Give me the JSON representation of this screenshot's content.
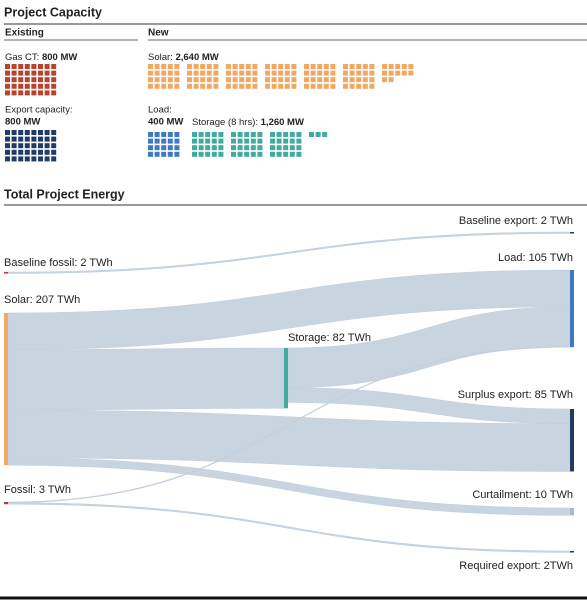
{
  "capacity": {
    "title": "Project Capacity",
    "existing_heading": "Existing",
    "new_heading": "New",
    "items": [
      {
        "label": "Gas CT:",
        "value_label": "800 MW",
        "value": 800,
        "color": "#b5452f"
      },
      {
        "label": "Export capacity:",
        "value_label": "800 MW",
        "value": 800,
        "color": "#1f3b66"
      },
      {
        "label": "Solar:",
        "value_label": "2,640 MW",
        "value": 2640,
        "color": "#f0a964"
      },
      {
        "label": "Load:",
        "value_label": "400 MW",
        "value": 400,
        "color": "#3f79c2"
      },
      {
        "label": "Storage (8 hrs):",
        "value_label": "1,260 MW",
        "value": 1260,
        "color": "#44aaa0"
      }
    ]
  },
  "energy": {
    "title": "Total Project Energy",
    "link_color": "#c3cfde",
    "nodes": [
      {
        "label": "Baseline fossil: 2 TWh",
        "value": 2,
        "color": "#c0392b"
      },
      {
        "label": "Solar: 207 TWh",
        "value": 207,
        "color": "#f0a964"
      },
      {
        "label": "Fossil: 3 TWh",
        "value": 3,
        "color": "#c0392b"
      },
      {
        "label": "Storage: 82 TWh",
        "value": 82,
        "color": "#44aaa0"
      },
      {
        "label": "Baseline export: 2 TWh",
        "value": 2,
        "color": "#1f3b66"
      },
      {
        "label": "Load: 105 TWh",
        "value": 105,
        "color": "#3f79c2"
      },
      {
        "label": "Surplus export: 85 TWh",
        "value": 85,
        "color": "#1f3b66"
      },
      {
        "label": "Curtailment: 10 TWh",
        "value": 10,
        "color": "#a9b8cc"
      },
      {
        "label": "Required export: 2TWh",
        "value": 2,
        "color": "#1f3b66"
      }
    ],
    "links": [
      {
        "source": 0,
        "target": 4,
        "value": 2
      },
      {
        "source": 1,
        "target": 5,
        "value": 50
      },
      {
        "source": 1,
        "target": 3,
        "value": 82
      },
      {
        "source": 1,
        "target": 6,
        "value": 65
      },
      {
        "source": 1,
        "target": 7,
        "value": 10
      },
      {
        "source": 3,
        "target": 5,
        "value": 54
      },
      {
        "source": 3,
        "target": 6,
        "value": 20
      },
      {
        "source": 2,
        "target": 5,
        "value": 1
      },
      {
        "source": 2,
        "target": 8,
        "value": 2
      }
    ]
  }
}
